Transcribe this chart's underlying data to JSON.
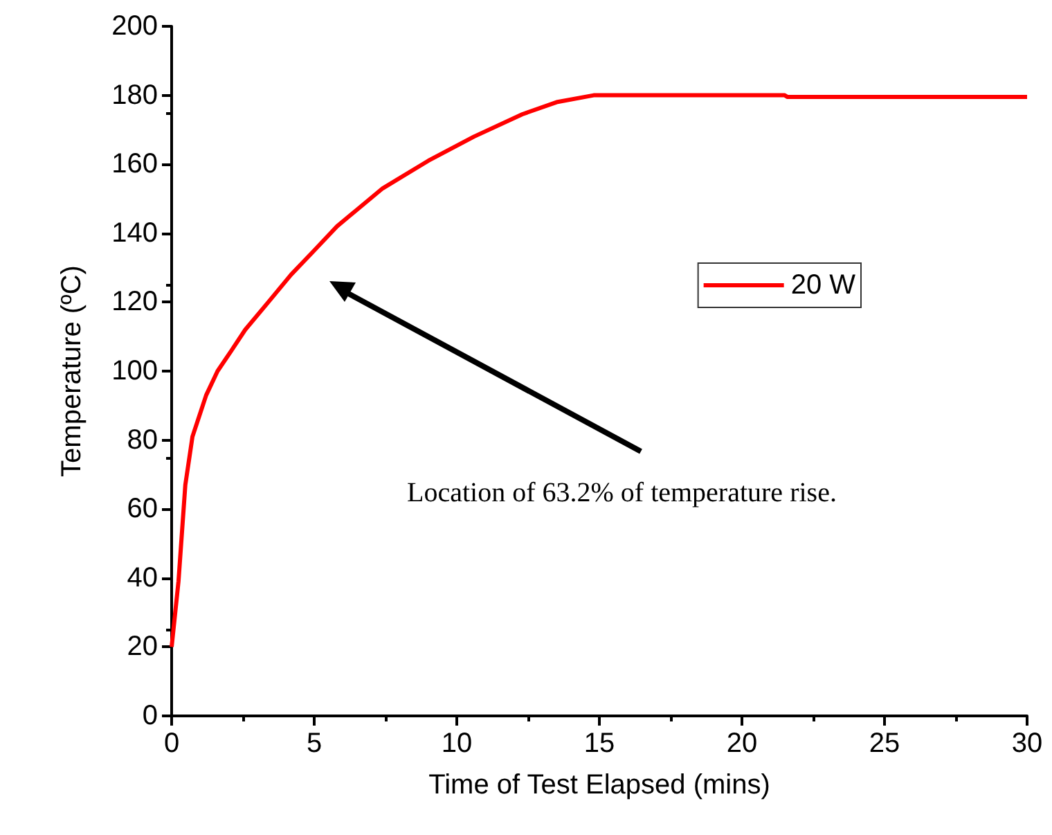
{
  "chart_data": {
    "type": "line",
    "xlabel": "Time of Test Elapsed (mins)",
    "ylabel": "Temperature (ºC)",
    "x": [
      0,
      0.24,
      0.48,
      0.73,
      0.97,
      1.21,
      1.61,
      2.1,
      2.58,
      3.39,
      4.19,
      5.0,
      5.8,
      7.4,
      9.0,
      10.6,
      12.3,
      13.5,
      14.8,
      15.8,
      17,
      19,
      21.5,
      21.6,
      24,
      27,
      30
    ],
    "series": [
      {
        "name": "20 W",
        "color": "#ff0000",
        "values": [
          20,
          39,
          67,
          81,
          87,
          93,
          100,
          106,
          112,
          120,
          128,
          135,
          142,
          153,
          161,
          168,
          174.5,
          178,
          180,
          180,
          180,
          180,
          180,
          179.5,
          179.5,
          179.5,
          179.5
        ]
      }
    ],
    "xlim": [
      0,
      30
    ],
    "xticks": [
      0,
      5,
      10,
      15,
      20,
      25,
      30
    ],
    "ylim": [
      0,
      200
    ],
    "yticks": [
      0,
      20,
      40,
      60,
      80,
      100,
      120,
      140,
      160,
      180,
      200
    ],
    "grid": false,
    "legend": "right",
    "marker": "none",
    "line_style": "solid",
    "annotations": [
      "Location of 63.2% of temperature rise."
    ]
  }
}
